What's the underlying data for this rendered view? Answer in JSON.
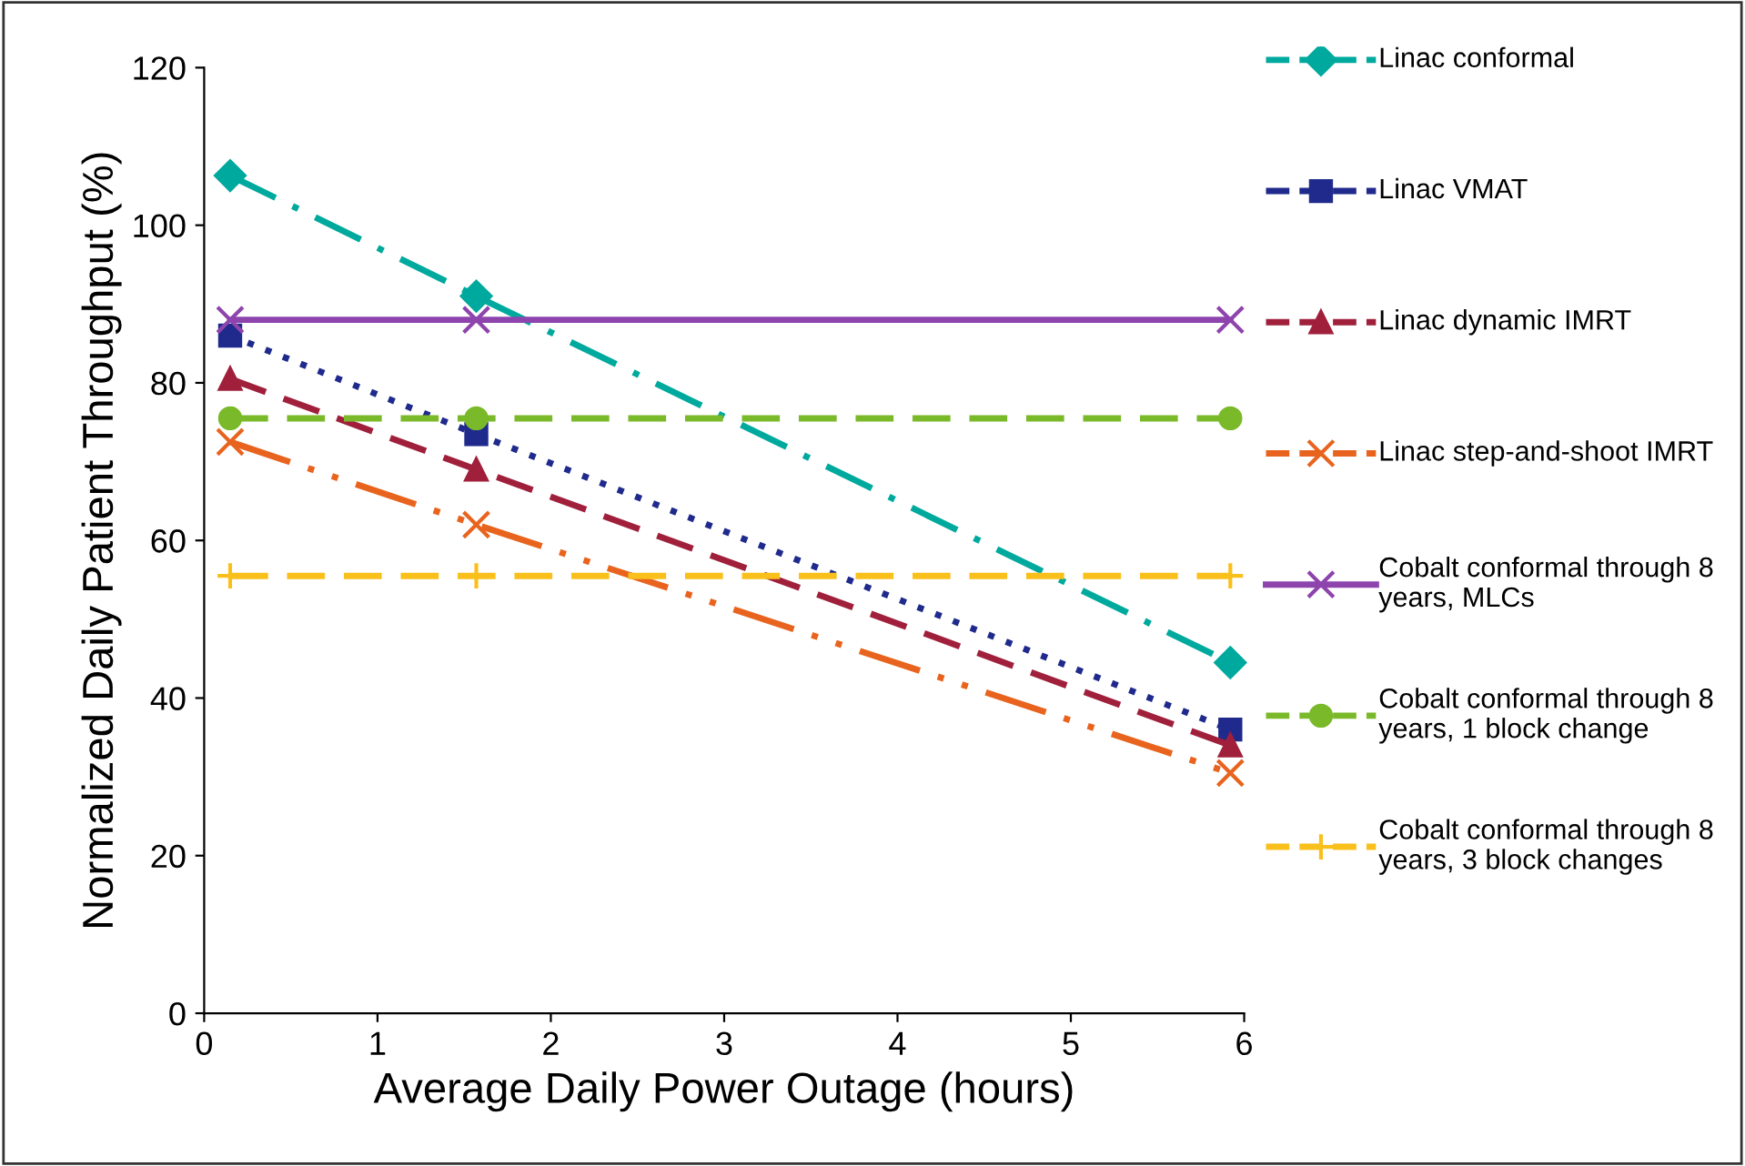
{
  "chart_data": {
    "type": "line",
    "xlabel": "Average Daily Power Outage (hours)",
    "ylabel": "Normalized Daily Patient Throughput (%)",
    "xlim": [
      0,
      6
    ],
    "xticks": [
      0,
      1,
      2,
      3,
      4,
      5,
      6
    ],
    "ylim": [
      0,
      120
    ],
    "yticks": [
      0,
      20,
      40,
      60,
      80,
      100,
      120
    ],
    "grid": false,
    "legend": "right",
    "series": [
      {
        "name": "Linac conformal",
        "color": "#00a99d",
        "marker": "diamond",
        "line_style": "dashdot",
        "x": [
          0.15,
          1.57,
          5.92
        ],
        "values": [
          106.3,
          91,
          44.5
        ]
      },
      {
        "name": "Linac VMAT",
        "color": "#1f2a8c",
        "marker": "square",
        "line_style": "dotted",
        "x": [
          0.15,
          1.57,
          5.92
        ],
        "values": [
          86,
          73.5,
          36
        ]
      },
      {
        "name": "Linac dynamic IMRT",
        "color": "#a0203c",
        "marker": "triangle",
        "line_style": "dashed",
        "x": [
          0.15,
          1.57,
          5.92
        ],
        "values": [
          80.5,
          69,
          34
        ]
      },
      {
        "name": "Linac step-and-shoot IMRT",
        "color": "#e8641e",
        "marker": "cross",
        "line_style": "dashdotdot",
        "x": [
          0.15,
          1.57,
          5.92
        ],
        "values": [
          72.5,
          62,
          30.5
        ]
      },
      {
        "name": "Cobalt conformal through 8 years, MLCs",
        "color": "#8e44ad",
        "marker": "cross",
        "line_style": "solid",
        "x": [
          0.15,
          1.57,
          5.92
        ],
        "values": [
          88,
          88,
          88
        ]
      },
      {
        "name": "Cobalt conformal through 8 years, 1 block change",
        "color": "#7ab929",
        "marker": "circle",
        "line_style": "dashed",
        "x": [
          0.15,
          1.57,
          5.92
        ],
        "values": [
          75.5,
          75.5,
          75.5
        ]
      },
      {
        "name": "Cobalt conformal through 8 years, 3 block changes",
        "color": "#f9c01c",
        "marker": "plus",
        "line_style": "dashed",
        "x": [
          0.15,
          1.57,
          5.92
        ],
        "values": [
          55.5,
          55.5,
          55.5
        ]
      }
    ]
  }
}
